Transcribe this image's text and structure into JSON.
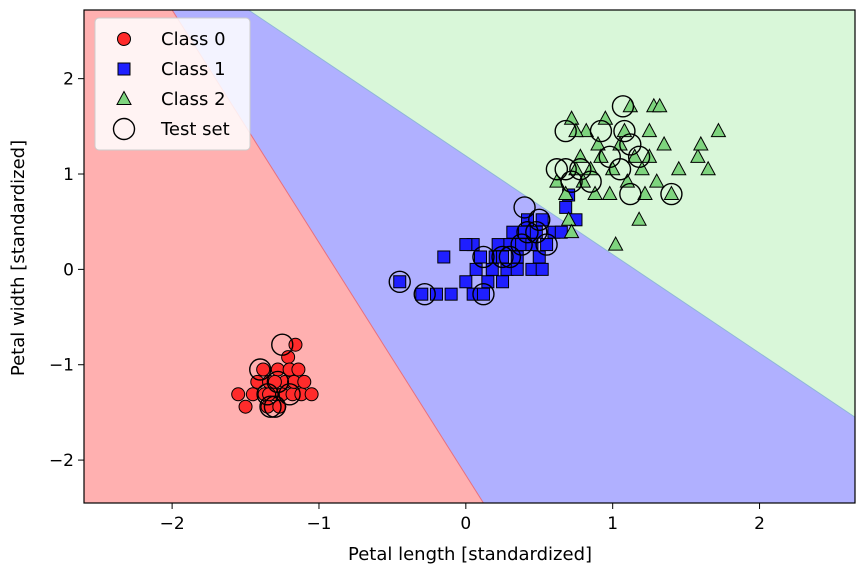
{
  "chart_data": {
    "type": "scatter",
    "title": "",
    "xlabel": "Petal length [standardized]",
    "ylabel": "Petal width [standardized]",
    "xlim": [
      -2.6,
      2.65
    ],
    "ylim": [
      -2.45,
      2.72
    ],
    "xticks": [
      -2,
      -1,
      0,
      1,
      2
    ],
    "yticks": [
      -2,
      -1,
      0,
      1,
      2
    ],
    "xtick_labels": [
      "−2",
      "−1",
      "0",
      "1",
      "2"
    ],
    "ytick_labels": [
      "−2",
      "−1",
      "0",
      "1",
      "2"
    ],
    "legend_position": "top-left",
    "grid": false,
    "decision_regions": [
      {
        "class": "Class 0",
        "color": "#ffb0b0"
      },
      {
        "class": "Class 1",
        "color": "#b0b0ff"
      },
      {
        "class": "Class 2",
        "color": "#d9f7d9"
      }
    ],
    "decision_boundaries": [
      {
        "between": [
          "Class 0",
          "Class 1"
        ],
        "points": [
          [
            -2.0,
            2.72
          ],
          [
            0.12,
            -2.45
          ]
        ]
      },
      {
        "between": [
          "Class 1",
          "Class 2"
        ],
        "points": [
          [
            -1.48,
            2.72
          ],
          [
            2.65,
            -1.55
          ]
        ]
      }
    ],
    "series": [
      {
        "name": "Class 0",
        "marker": "circle",
        "color": "#ff2b2b",
        "points": [
          [
            -1.55,
            -1.31
          ],
          [
            -1.5,
            -1.44
          ],
          [
            -1.45,
            -1.31
          ],
          [
            -1.42,
            -1.18
          ],
          [
            -1.38,
            -1.05
          ],
          [
            -1.37,
            -1.31
          ],
          [
            -1.35,
            -1.44
          ],
          [
            -1.34,
            -1.18
          ],
          [
            -1.3,
            -1.31
          ],
          [
            -1.28,
            -1.05
          ],
          [
            -1.27,
            -1.44
          ],
          [
            -1.25,
            -1.31
          ],
          [
            -1.23,
            -1.18
          ],
          [
            -1.21,
            -0.92
          ],
          [
            -1.2,
            -1.05
          ],
          [
            -1.18,
            -1.31
          ],
          [
            -1.17,
            -1.18
          ],
          [
            -1.16,
            -0.79
          ],
          [
            -1.14,
            -1.05
          ],
          [
            -1.12,
            -1.31
          ],
          [
            -1.1,
            -1.18
          ],
          [
            -1.05,
            -1.31
          ],
          [
            -1.3,
            -1.18
          ],
          [
            -1.34,
            -1.31
          ]
        ]
      },
      {
        "name": "Class 1",
        "marker": "square",
        "color": "#1f1fff",
        "points": [
          [
            -0.45,
            -0.13
          ],
          [
            -0.3,
            -0.26
          ],
          [
            -0.2,
            -0.26
          ],
          [
            -0.1,
            -0.26
          ],
          [
            0.0,
            -0.13
          ],
          [
            0.05,
            -0.26
          ],
          [
            0.07,
            0.0
          ],
          [
            0.1,
            0.13
          ],
          [
            0.12,
            -0.26
          ],
          [
            0.15,
            -0.13
          ],
          [
            0.18,
            0.0
          ],
          [
            0.2,
            0.13
          ],
          [
            0.22,
            0.26
          ],
          [
            0.25,
            0.13
          ],
          [
            0.28,
            0.0
          ],
          [
            0.3,
            0.26
          ],
          [
            0.32,
            0.39
          ],
          [
            0.35,
            0.13
          ],
          [
            0.38,
            0.26
          ],
          [
            0.4,
            0.39
          ],
          [
            0.42,
            0.52
          ],
          [
            0.45,
            0.26
          ],
          [
            0.48,
            0.39
          ],
          [
            0.5,
            0.13
          ],
          [
            0.52,
            0.52
          ],
          [
            0.55,
            0.26
          ],
          [
            0.6,
            0.39
          ],
          [
            0.65,
            0.39
          ],
          [
            0.68,
            0.65
          ],
          [
            0.7,
            0.78
          ],
          [
            0.75,
            0.52
          ],
          [
            0.05,
            0.26
          ],
          [
            -0.15,
            0.13
          ],
          [
            0.35,
            0.0
          ],
          [
            0.45,
            0.0
          ],
          [
            0.52,
            0.0
          ],
          [
            0.25,
            -0.13
          ],
          [
            0.0,
            0.26
          ]
        ]
      },
      {
        "name": "Class 2",
        "marker": "triangle",
        "color": "#7ed47e",
        "points": [
          [
            0.62,
            0.92
          ],
          [
            0.68,
            0.79
          ],
          [
            0.7,
            0.52
          ],
          [
            0.72,
            0.39
          ],
          [
            0.75,
            1.05
          ],
          [
            0.78,
            1.18
          ],
          [
            0.8,
            0.92
          ],
          [
            0.82,
            1.45
          ],
          [
            0.85,
            1.05
          ],
          [
            0.88,
            0.79
          ],
          [
            0.9,
            1.31
          ],
          [
            0.92,
            1.18
          ],
          [
            0.95,
            1.58
          ],
          [
            0.98,
            0.79
          ],
          [
            1.0,
            1.05
          ],
          [
            1.02,
            0.26
          ],
          [
            1.05,
            1.31
          ],
          [
            1.08,
            1.45
          ],
          [
            1.1,
            0.92
          ],
          [
            1.12,
            1.71
          ],
          [
            1.15,
            1.18
          ],
          [
            1.18,
            0.52
          ],
          [
            1.2,
            1.05
          ],
          [
            1.22,
            0.79
          ],
          [
            1.25,
            1.45
          ],
          [
            1.28,
            1.71
          ],
          [
            1.3,
            0.92
          ],
          [
            1.32,
            1.71
          ],
          [
            1.35,
            1.31
          ],
          [
            1.4,
            0.79
          ],
          [
            1.45,
            1.05
          ],
          [
            1.58,
            1.18
          ],
          [
            1.6,
            1.31
          ],
          [
            1.65,
            1.05
          ],
          [
            1.72,
            1.45
          ],
          [
            0.72,
            1.58
          ],
          [
            0.75,
            1.45
          ],
          [
            1.25,
            1.18
          ]
        ]
      },
      {
        "name": "Test set",
        "marker": "ring",
        "color": "#000000",
        "points": [
          [
            -1.4,
            -1.05
          ],
          [
            -1.35,
            -1.31
          ],
          [
            -1.33,
            -1.44
          ],
          [
            -1.3,
            -1.44
          ],
          [
            -1.25,
            -0.79
          ],
          [
            -1.28,
            -1.18
          ],
          [
            -1.2,
            -1.31
          ],
          [
            -0.45,
            -0.13
          ],
          [
            -0.28,
            -0.26
          ],
          [
            0.12,
            0.13
          ],
          [
            0.12,
            -0.26
          ],
          [
            0.25,
            0.13
          ],
          [
            0.3,
            0.13
          ],
          [
            0.38,
            0.26
          ],
          [
            0.4,
            0.65
          ],
          [
            0.42,
            0.39
          ],
          [
            0.48,
            0.39
          ],
          [
            0.5,
            0.52
          ],
          [
            0.55,
            0.26
          ],
          [
            0.62,
            1.05
          ],
          [
            0.68,
            1.05
          ],
          [
            0.72,
            0.92
          ],
          [
            0.78,
            1.05
          ],
          [
            0.85,
            0.92
          ],
          [
            0.92,
            1.45
          ],
          [
            0.98,
            1.18
          ],
          [
            1.05,
            1.05
          ],
          [
            1.07,
            1.71
          ],
          [
            1.08,
            1.45
          ],
          [
            1.12,
            1.31
          ],
          [
            1.18,
            1.18
          ],
          [
            1.12,
            0.79
          ],
          [
            1.4,
            0.79
          ],
          [
            0.68,
            1.45
          ]
        ]
      }
    ],
    "legend": [
      {
        "label": "Class 0",
        "marker": "circle",
        "color": "#ff2b2b"
      },
      {
        "label": "Class 1",
        "marker": "square",
        "color": "#1f1fff"
      },
      {
        "label": "Class 2",
        "marker": "triangle",
        "color": "#7ed47e"
      },
      {
        "label": "Test set",
        "marker": "ring",
        "color": "#000000"
      }
    ]
  }
}
